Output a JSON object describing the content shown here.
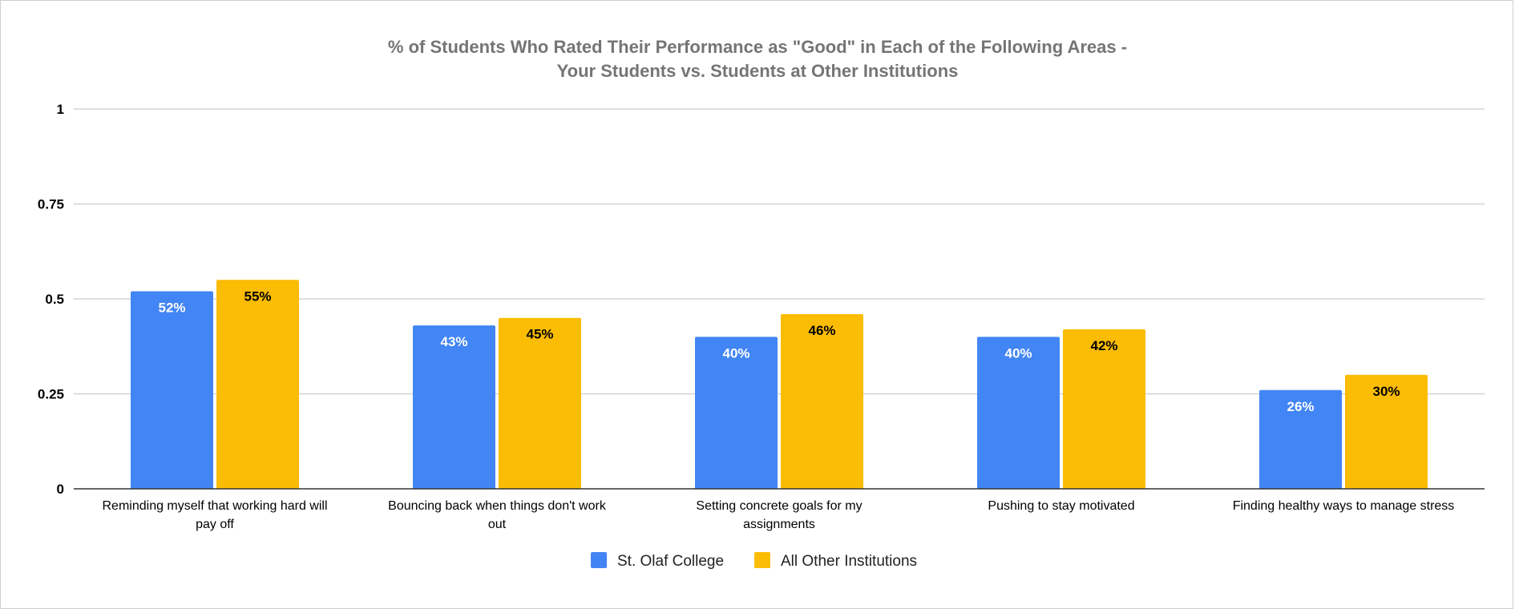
{
  "chart_data": {
    "type": "bar",
    "title_lines": [
      "% of Students Who Rated Their Performance as \"Good\" in Each of the Following Areas -",
      "Your Students vs. Students at Other Institutions"
    ],
    "xlabel": "",
    "ylabel": "",
    "ylim": [
      0,
      1
    ],
    "yticks": [
      {
        "value": 0,
        "label": "0"
      },
      {
        "value": 0.25,
        "label": "0.25"
      },
      {
        "value": 0.5,
        "label": "0.5"
      },
      {
        "value": 0.75,
        "label": "0.75"
      },
      {
        "value": 1,
        "label": "1"
      }
    ],
    "grid": true,
    "legend_position": "bottom",
    "categories": [
      [
        "Reminding myself that working hard will",
        "pay off"
      ],
      [
        "Bouncing back when things don't work",
        "out"
      ],
      [
        "Setting concrete goals for my",
        "assignments"
      ],
      [
        "Pushing to stay motivated"
      ],
      [
        "Finding healthy ways to manage stress"
      ]
    ],
    "series": [
      {
        "name": "St. Olaf College",
        "color": "#4285F4",
        "label_color": "#ffffff",
        "values": [
          0.52,
          0.43,
          0.4,
          0.4,
          0.26
        ],
        "labels": [
          "52%",
          "43%",
          "40%",
          "40%",
          "26%"
        ]
      },
      {
        "name": "All Other Institutions",
        "color": "#FBBC04",
        "label_color": "#000000",
        "values": [
          0.55,
          0.45,
          0.46,
          0.42,
          0.3
        ],
        "labels": [
          "55%",
          "45%",
          "46%",
          "42%",
          "30%"
        ]
      }
    ]
  }
}
